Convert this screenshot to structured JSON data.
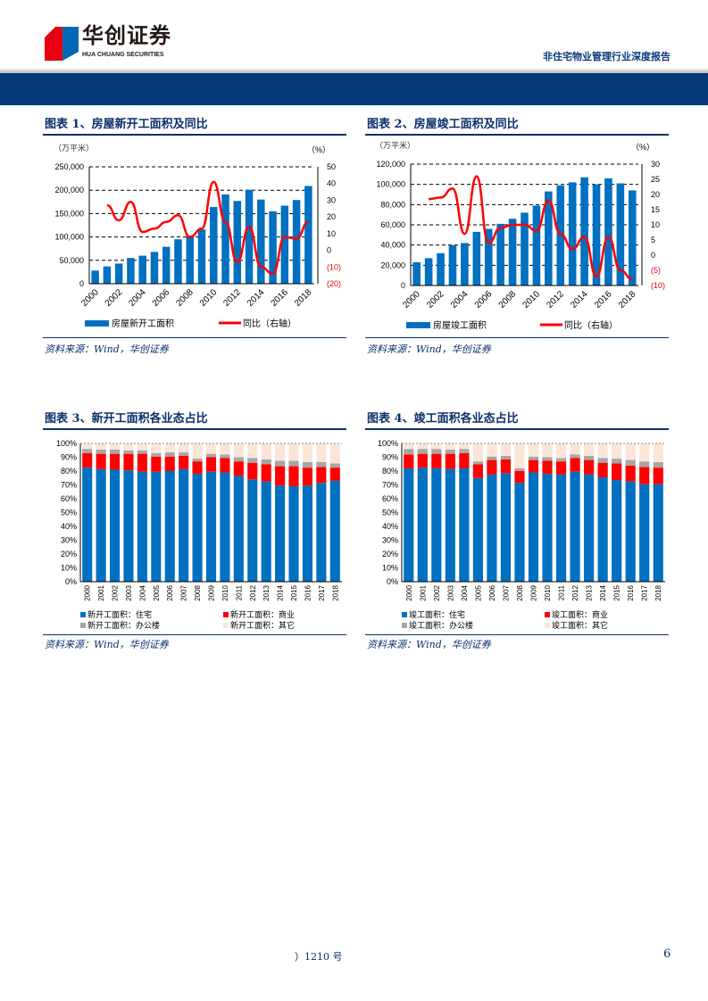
{
  "header": {
    "logo_cn": "华创证券",
    "logo_en": "HUA CHUANG SECURITIES",
    "report_title": "非住宅物业管理行业深度报告"
  },
  "footer": {
    "note": "）1210 号",
    "page": "6"
  },
  "colors": {
    "bar": "#0070c0",
    "line": "#ff0000",
    "commercial": "#ff0000",
    "office": "#a6a6a6",
    "other": "#fbe5d6",
    "navy": "#063a7a"
  },
  "chart_data": [
    {
      "type": "bar+line",
      "title": "图表 1、房屋新开工面积及同比",
      "source": "资料来源：Wind，华创证券",
      "left_unit": "（万平米）",
      "right_unit": "（%）",
      "categories": [
        "2000",
        "2001",
        "2002",
        "2003",
        "2004",
        "2005",
        "2006",
        "2007",
        "2008",
        "2009",
        "2010",
        "2011",
        "2012",
        "2013",
        "2014",
        "2015",
        "2016",
        "2017",
        "2018"
      ],
      "x_tick_labels": [
        "2000",
        "2002",
        "2004",
        "2006",
        "2008",
        "2010",
        "2012",
        "2014",
        "2016",
        "2018"
      ],
      "left_ticks": [
        "0",
        "50,000",
        "100,000",
        "150,000",
        "200,000",
        "250,000"
      ],
      "ylim": [
        0,
        250000
      ],
      "right_ticks": [
        "(20)",
        "(10)",
        "0",
        "10",
        "20",
        "30",
        "40",
        "50"
      ],
      "y2lim": [
        -20,
        50
      ],
      "series": [
        {
          "name": "房屋新开工面积",
          "type": "bar",
          "values": [
            28000,
            37000,
            43000,
            55000,
            60000,
            68000,
            79000,
            95000,
            103000,
            116000,
            164000,
            191000,
            177000,
            201000,
            180000,
            155000,
            167000,
            179000,
            209000
          ]
        },
        {
          "name": "同比（右轴）",
          "type": "line",
          "values": [
            null,
            27,
            18,
            29,
            11,
            13,
            17,
            21,
            8,
            13,
            41,
            17,
            -7,
            14,
            -10,
            -14,
            8,
            7,
            17
          ]
        }
      ],
      "grid": true,
      "legend": "bottom"
    },
    {
      "type": "bar+line",
      "title": "图表 2、房屋竣工面积及同比",
      "source": "资料来源：Wind，华创证券",
      "left_unit": "（万平米）",
      "right_unit": "（%）",
      "categories": [
        "2000",
        "2001",
        "2002",
        "2003",
        "2004",
        "2005",
        "2006",
        "2007",
        "2008",
        "2009",
        "2010",
        "2011",
        "2012",
        "2013",
        "2014",
        "2015",
        "2016",
        "2017",
        "2018"
      ],
      "x_tick_labels": [
        "2000",
        "2002",
        "2004",
        "2006",
        "2008",
        "2010",
        "2012",
        "2014",
        "2016",
        "2018"
      ],
      "left_ticks": [
        "0",
        "20,000",
        "40,000",
        "60,000",
        "80,000",
        "100,000",
        "120,000"
      ],
      "ylim": [
        0,
        120000
      ],
      "right_ticks": [
        "(10)",
        "(5)",
        "0",
        "5",
        "10",
        "15",
        "20",
        "25",
        "30"
      ],
      "y2lim": [
        -10,
        30
      ],
      "series": [
        {
          "name": "房屋竣工面积",
          "type": "bar",
          "values": [
            23000,
            27000,
            32000,
            40000,
            42000,
            53000,
            56000,
            61000,
            66000,
            72000,
            79000,
            93000,
            99000,
            102000,
            107000,
            100000,
            106000,
            101000,
            94000
          ]
        },
        {
          "name": "同比（右轴）",
          "type": "line",
          "values": [
            null,
            18.5,
            19,
            22,
            7,
            26,
            4,
            9,
            10,
            10,
            8,
            18,
            7,
            2,
            6,
            -7,
            6,
            -5,
            -8
          ]
        }
      ],
      "grid": true,
      "legend": "bottom"
    },
    {
      "type": "stacked_bar",
      "title": "图表 3、新开工面积各业态占比",
      "source": "资料来源：Wind，华创证券",
      "categories": [
        "2000",
        "2001",
        "2002",
        "2003",
        "2004",
        "2005",
        "2006",
        "2007",
        "2008",
        "2009",
        "2010",
        "2011",
        "2012",
        "2013",
        "2014",
        "2015",
        "2016",
        "2017",
        "2018"
      ],
      "y_ticks": [
        "0%",
        "10%",
        "20%",
        "30%",
        "40%",
        "50%",
        "60%",
        "70%",
        "80%",
        "90%",
        "100%"
      ],
      "ylim": [
        0,
        100
      ],
      "series": [
        {
          "name": "新开工面积：住宅",
          "values": [
            82.5,
            81.5,
            81,
            80.5,
            79.5,
            79.5,
            80,
            81.5,
            78,
            79.5,
            79,
            76.5,
            74,
            72.5,
            69.5,
            69,
            69.5,
            71.5,
            73
          ]
        },
        {
          "name": "新开工面积：商业",
          "values": [
            10.5,
            11,
            11.5,
            12,
            13,
            11,
            10.5,
            9.5,
            9,
            10.5,
            10.5,
            10.5,
            12,
            12.5,
            14,
            14.5,
            13,
            11.5,
            9.5
          ]
        },
        {
          "name": "新开工面积：办公楼",
          "values": [
            3,
            3,
            3,
            2.5,
            2.5,
            2.5,
            3,
            2.5,
            2,
            2.5,
            2.5,
            3,
            3.5,
            3.5,
            4,
            4,
            4,
            3.5,
            3
          ]
        },
        {
          "name": "新开工面积：其它",
          "values": [
            4,
            4.5,
            4.5,
            5,
            5,
            7,
            6.5,
            6.5,
            11,
            7.5,
            8,
            10,
            10.5,
            11.5,
            12.5,
            12.5,
            13.5,
            13.5,
            14.5
          ]
        }
      ],
      "grid": true,
      "legend": "bottom"
    },
    {
      "type": "stacked_bar",
      "title": "图表 4、竣工面积各业态占比",
      "source": "资料来源：Wind，华创证券",
      "categories": [
        "2000",
        "2001",
        "2002",
        "2003",
        "2004",
        "2005",
        "2006",
        "2007",
        "2008",
        "2009",
        "2010",
        "2011",
        "2012",
        "2013",
        "2014",
        "2015",
        "2016",
        "2017",
        "2018"
      ],
      "y_ticks": [
        "0%",
        "10%",
        "20%",
        "30%",
        "40%",
        "50%",
        "60%",
        "70%",
        "80%",
        "90%",
        "100%"
      ],
      "ylim": [
        0,
        100
      ],
      "series": [
        {
          "name": "竣工面积：住宅",
          "values": [
            82,
            82.5,
            82,
            81.5,
            82,
            75,
            77.5,
            78.5,
            71.5,
            79,
            78,
            77.5,
            79.5,
            77.5,
            75.5,
            73.5,
            72.5,
            70.5,
            70.5
          ]
        },
        {
          "name": "竣工面积：商业",
          "values": [
            10,
            10,
            10.5,
            11,
            11,
            10,
            10.5,
            10,
            8.5,
            9,
            9.5,
            9.5,
            10,
            10.5,
            10.5,
            12,
            11.5,
            12.5,
            12
          ]
        },
        {
          "name": "竣工面积：办公楼",
          "values": [
            4,
            3.5,
            3.5,
            3,
            3,
            2,
            2.5,
            2.5,
            2,
            2.5,
            2.5,
            2.5,
            2.5,
            3,
            3.5,
            3.5,
            4,
            4,
            4
          ]
        },
        {
          "name": "竣工面积：其它",
          "values": [
            4,
            4,
            4,
            4.5,
            4,
            13,
            9.5,
            9,
            18,
            9.5,
            10,
            10.5,
            8,
            9,
            10.5,
            11,
            12,
            13,
            13.5
          ]
        }
      ],
      "grid": true,
      "legend": "bottom"
    }
  ]
}
